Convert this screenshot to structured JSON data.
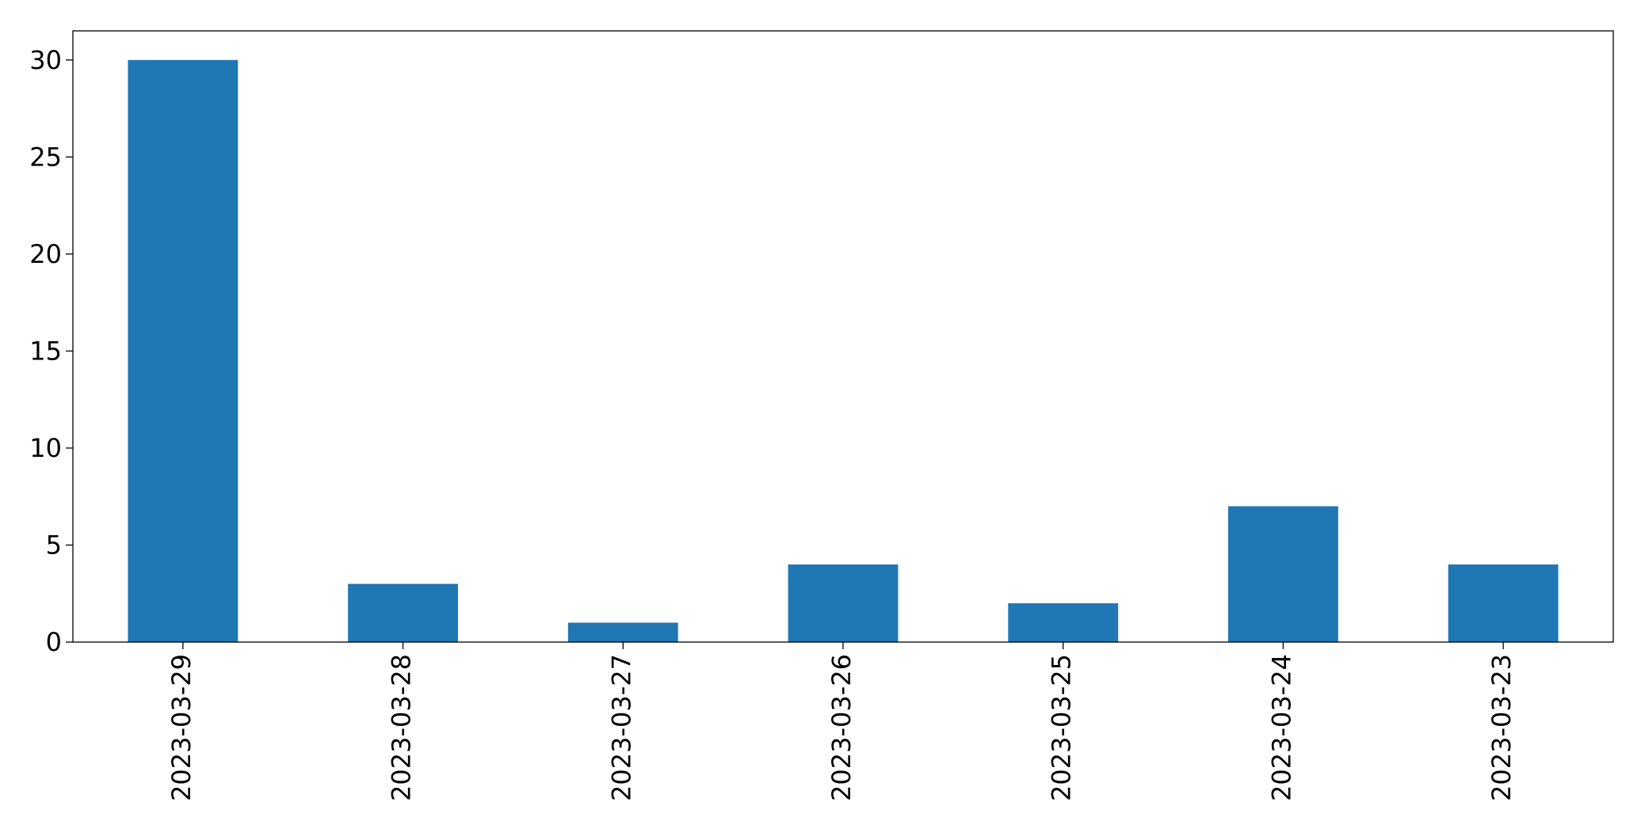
{
  "chart_data": {
    "type": "bar",
    "categories": [
      "2023-03-29",
      "2023-03-28",
      "2023-03-27",
      "2023-03-26",
      "2023-03-25",
      "2023-03-24",
      "2023-03-23"
    ],
    "values": [
      30,
      3,
      1,
      4,
      2,
      7,
      4
    ],
    "ylim": [
      0,
      31.5
    ],
    "yticks": [
      0,
      5,
      10,
      15,
      20,
      25,
      30
    ],
    "xlabel": "",
    "ylabel": "",
    "title": "",
    "grid": false,
    "bar_color": "#1f77b4",
    "x_tick_rotation": "vertical"
  }
}
